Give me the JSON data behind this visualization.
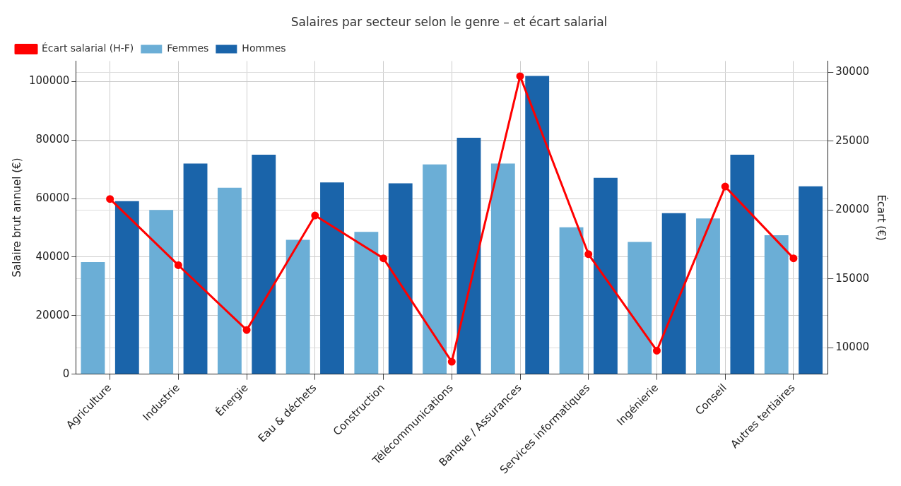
{
  "chart_data": {
    "type": "bar",
    "title": "Salaires par secteur selon le genre – et écart salarial",
    "ylabel": "Salaire brut annuel (€)",
    "y2label": "Écart (€)",
    "categories": [
      "Agriculture",
      "Industrie",
      "Énergie",
      "Eau & déchets",
      "Construction",
      "Télécommunications",
      "Banque / Assurances",
      "Services informatiques",
      "Ingénierie",
      "Conseil",
      "Autres tertiaires"
    ],
    "series": [
      {
        "name": "Femmes",
        "color": "#6baed6",
        "values": [
          38300,
          56100,
          63700,
          45900,
          48600,
          71700,
          72000,
          50200,
          45200,
          53200,
          47500
        ]
      },
      {
        "name": "Hommes",
        "color": "#1a64aa",
        "values": [
          59100,
          72000,
          75000,
          65500,
          65200,
          80800,
          101900,
          67100,
          55000,
          75000,
          64200
        ]
      },
      {
        "name": "Écart salarial (H-F)",
        "type": "line",
        "axis": "y2",
        "color": "#ff0000",
        "marker": "circle",
        "values": [
          20800,
          16000,
          11300,
          19600,
          16500,
          9000,
          29700,
          16800,
          9800,
          21700,
          16500
        ]
      }
    ],
    "ylim": [
      0,
      107000
    ],
    "yticks": [
      0,
      20000,
      40000,
      60000,
      80000,
      100000
    ],
    "y2lim": [
      8100,
      30800
    ],
    "y2ticks": [
      10000,
      15000,
      20000,
      25000,
      30000
    ],
    "grid": true,
    "legend": "top left"
  }
}
